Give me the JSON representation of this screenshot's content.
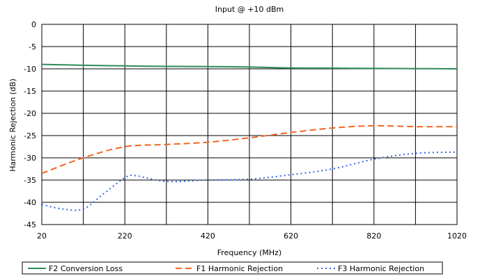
{
  "chart_data": {
    "type": "line",
    "title": "Input @ +10 dBm",
    "xlabel": "Frequency (MHz)",
    "ylabel": "Harmonic Rejection (dB)",
    "xlim": [
      20,
      1020
    ],
    "ylim": [
      -45,
      0
    ],
    "xticks": [
      20,
      220,
      420,
      620,
      820,
      1020
    ],
    "yticks": [
      0,
      -5,
      -10,
      -15,
      -20,
      -25,
      -30,
      -35,
      -40,
      -45
    ],
    "x_gridlines": [
      20,
      120,
      220,
      320,
      420,
      520,
      620,
      720,
      820,
      920,
      1020
    ],
    "grid": true,
    "legend_position": "bottom",
    "series": [
      {
        "name": "F2 Conversion Loss",
        "color": "#2e8b57",
        "dash": "solid",
        "points": [
          [
            20,
            -9.0
          ],
          [
            120,
            -9.2
          ],
          [
            220,
            -9.35
          ],
          [
            320,
            -9.45
          ],
          [
            420,
            -9.5
          ],
          [
            520,
            -9.6
          ],
          [
            620,
            -9.8
          ],
          [
            720,
            -9.85
          ],
          [
            820,
            -9.9
          ],
          [
            920,
            -9.95
          ],
          [
            1020,
            -10.0
          ]
        ]
      },
      {
        "name": "F1 Harmonic Rejection",
        "color": "#f26522",
        "dash": "long",
        "points": [
          [
            20,
            -33.5
          ],
          [
            120,
            -30.0
          ],
          [
            220,
            -27.5
          ],
          [
            320,
            -27.0
          ],
          [
            420,
            -26.5
          ],
          [
            520,
            -25.5
          ],
          [
            620,
            -24.3
          ],
          [
            720,
            -23.3
          ],
          [
            820,
            -22.8
          ],
          [
            920,
            -23.0
          ],
          [
            1020,
            -23.0
          ]
        ]
      },
      {
        "name": "F3 Harmonic Rejection",
        "color": "#3366dd",
        "dash": "dotted",
        "points": [
          [
            20,
            -40.5
          ],
          [
            70,
            -41.5
          ],
          [
            120,
            -41.5
          ],
          [
            170,
            -38.0
          ],
          [
            220,
            -34.5
          ],
          [
            245,
            -34.0
          ],
          [
            320,
            -35.3
          ],
          [
            420,
            -35.0
          ],
          [
            520,
            -34.8
          ],
          [
            620,
            -33.8
          ],
          [
            720,
            -32.5
          ],
          [
            820,
            -30.3
          ],
          [
            920,
            -29.0
          ],
          [
            1020,
            -28.7
          ]
        ]
      }
    ]
  }
}
